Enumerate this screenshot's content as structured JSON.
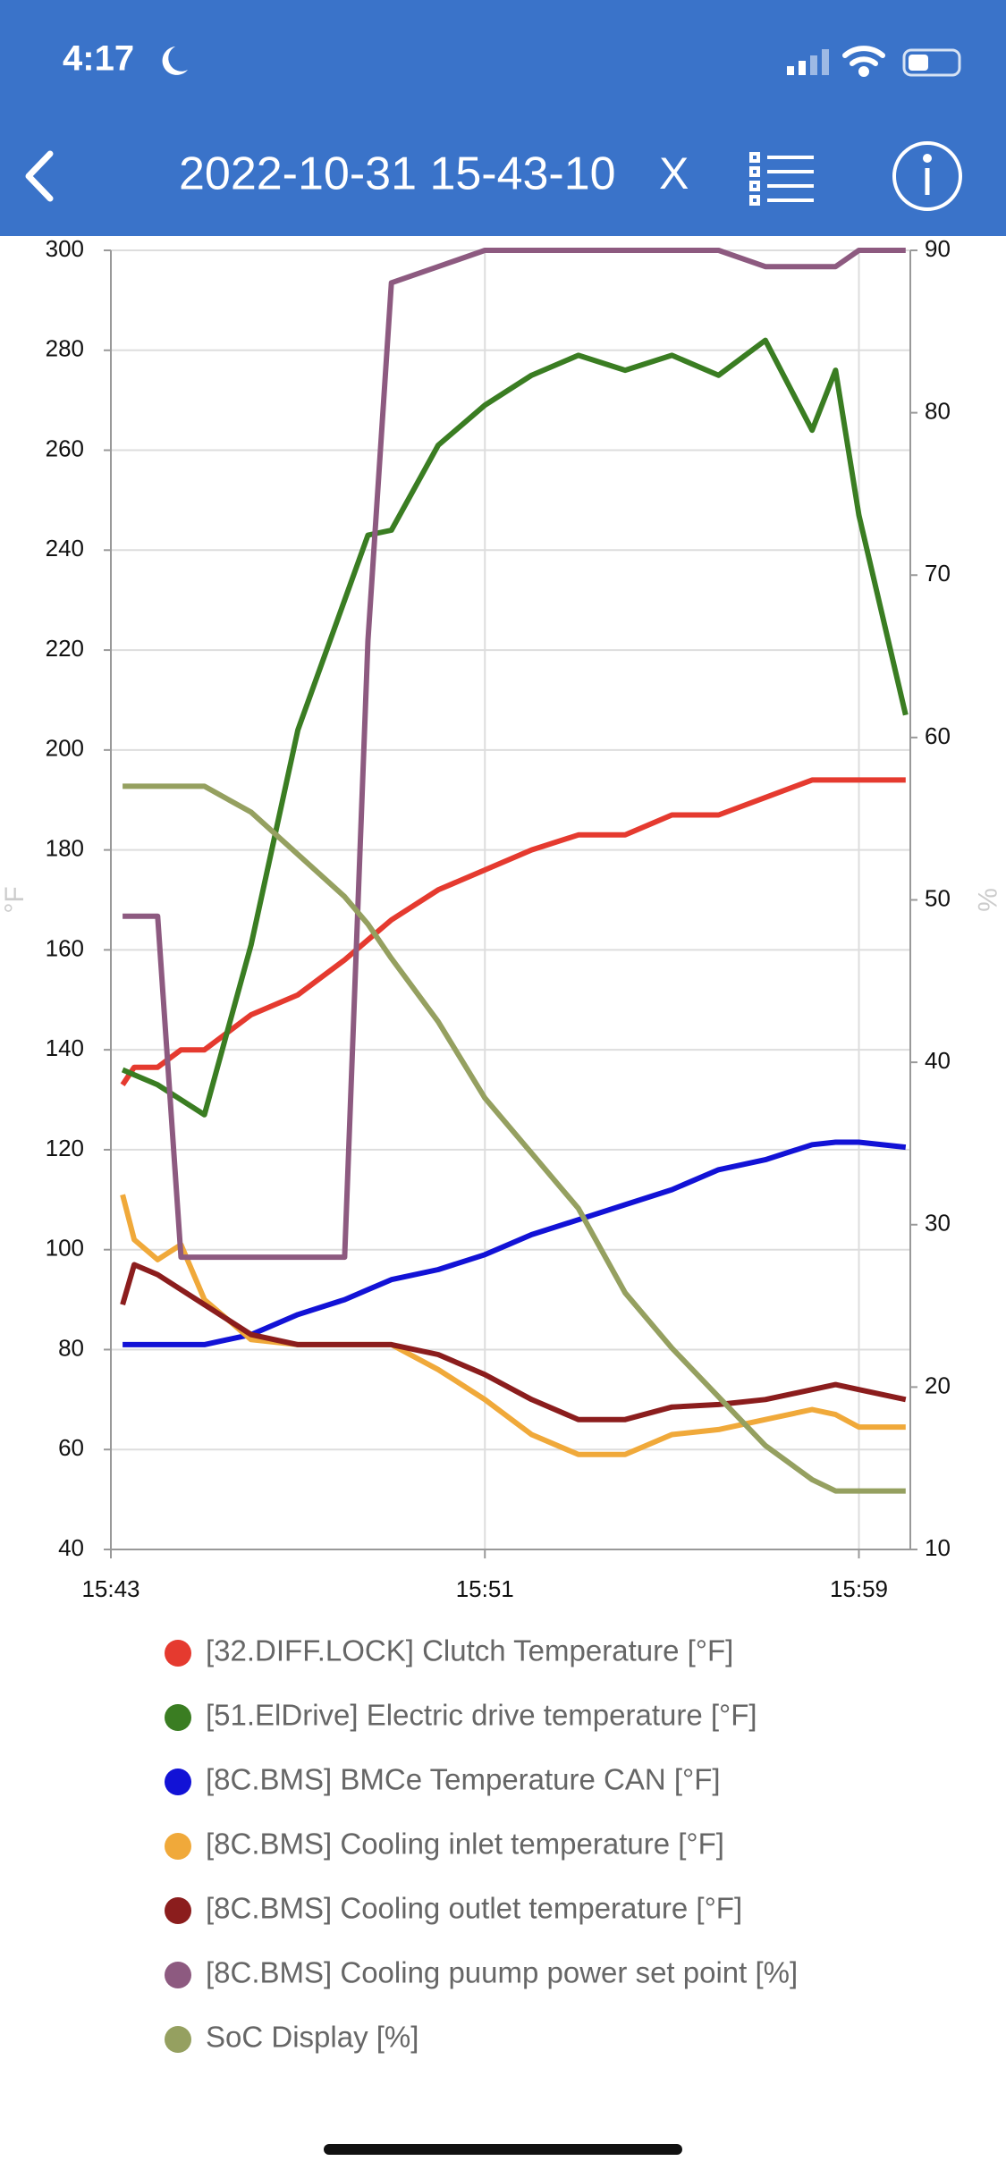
{
  "status_bar": {
    "time": "4:17"
  },
  "header": {
    "title": "2022-10-31 15-43-10",
    "close": "X"
  },
  "chart_data": {
    "type": "line",
    "ylabel": "°F",
    "y2label": "%",
    "x": [
      943.25,
      943.5,
      944,
      944.5,
      945,
      946,
      947,
      948,
      948.5,
      949,
      950,
      951,
      952,
      953,
      954,
      955,
      956,
      957,
      958,
      958.5,
      959,
      960
    ],
    "xlim": [
      943,
      960.1
    ],
    "xticks": [
      {
        "value": 943,
        "label": "15:43"
      },
      {
        "value": 951,
        "label": "15:51"
      },
      {
        "value": 959,
        "label": "15:59"
      }
    ],
    "ylim": [
      40,
      300
    ],
    "yticks": [
      40,
      60,
      80,
      100,
      120,
      140,
      160,
      180,
      200,
      220,
      240,
      260,
      280,
      300
    ],
    "y2lim": [
      10,
      90
    ],
    "y2ticks": [
      10,
      20,
      30,
      40,
      50,
      60,
      70,
      80,
      90
    ],
    "grid": true,
    "series": [
      {
        "name": "[32.DIFF.LOCK] Clutch Temperature [°F]",
        "color": "#e53a2f",
        "values": [
          133,
          136.5,
          136.5,
          140,
          140,
          147,
          151,
          158,
          162,
          166,
          172,
          176,
          180,
          183,
          183,
          187,
          187,
          190.5,
          194,
          194,
          194,
          194
        ]
      },
      {
        "name": "[51.ElDrive] Electric drive temperature [°F]",
        "color": "#3a7d22",
        "values": [
          136,
          135,
          133,
          130,
          127,
          161,
          204,
          230,
          243,
          244,
          261,
          269,
          275,
          279,
          276,
          279,
          275,
          282,
          264,
          276,
          247,
          207
        ]
      },
      {
        "name": "[8C.BMS] BMCe Temperature CAN [°F]",
        "color": "#1212d6",
        "values": [
          81,
          81,
          81,
          81,
          81,
          83,
          87,
          90,
          92,
          94,
          96,
          99,
          103,
          106,
          109,
          112,
          116,
          118,
          121,
          121.5,
          121.5,
          120.5
        ]
      },
      {
        "name": "[8C.BMS] Cooling inlet temperature [°F]",
        "color": "#f0a93a",
        "values": [
          111,
          102,
          98,
          101,
          90,
          82,
          81,
          81,
          81,
          81,
          76,
          70,
          63,
          59,
          59,
          63,
          64,
          66,
          68,
          67,
          64.5,
          64.5
        ]
      },
      {
        "name": "[8C.BMS] Cooling outlet temperature [°F]",
        "color": "#8b1d1d",
        "values": [
          89,
          97,
          95,
          92,
          89,
          83,
          81,
          81,
          81,
          81,
          79,
          75,
          70,
          66,
          66,
          68.5,
          69,
          70,
          72,
          73,
          72,
          70
        ]
      },
      {
        "name": "[8C.BMS] Cooling puump power set point [%]",
        "color": "#8d5a80",
        "axis": "y2",
        "values": [
          49,
          49,
          49,
          28,
          28,
          28,
          28,
          28,
          66,
          88,
          89,
          90,
          90,
          90,
          90,
          90,
          90,
          89,
          89,
          89,
          90,
          90
        ]
      },
      {
        "name": "SoC Display [%]",
        "color": "#95a060",
        "axis": "y2",
        "values": [
          57,
          57,
          57,
          57,
          57,
          55.4,
          52.8,
          50.2,
          48.5,
          46.4,
          42.5,
          37.8,
          34.4,
          31,
          25.8,
          22.4,
          19.4,
          16.4,
          14.3,
          13.6,
          13.6,
          13.6
        ]
      }
    ]
  }
}
